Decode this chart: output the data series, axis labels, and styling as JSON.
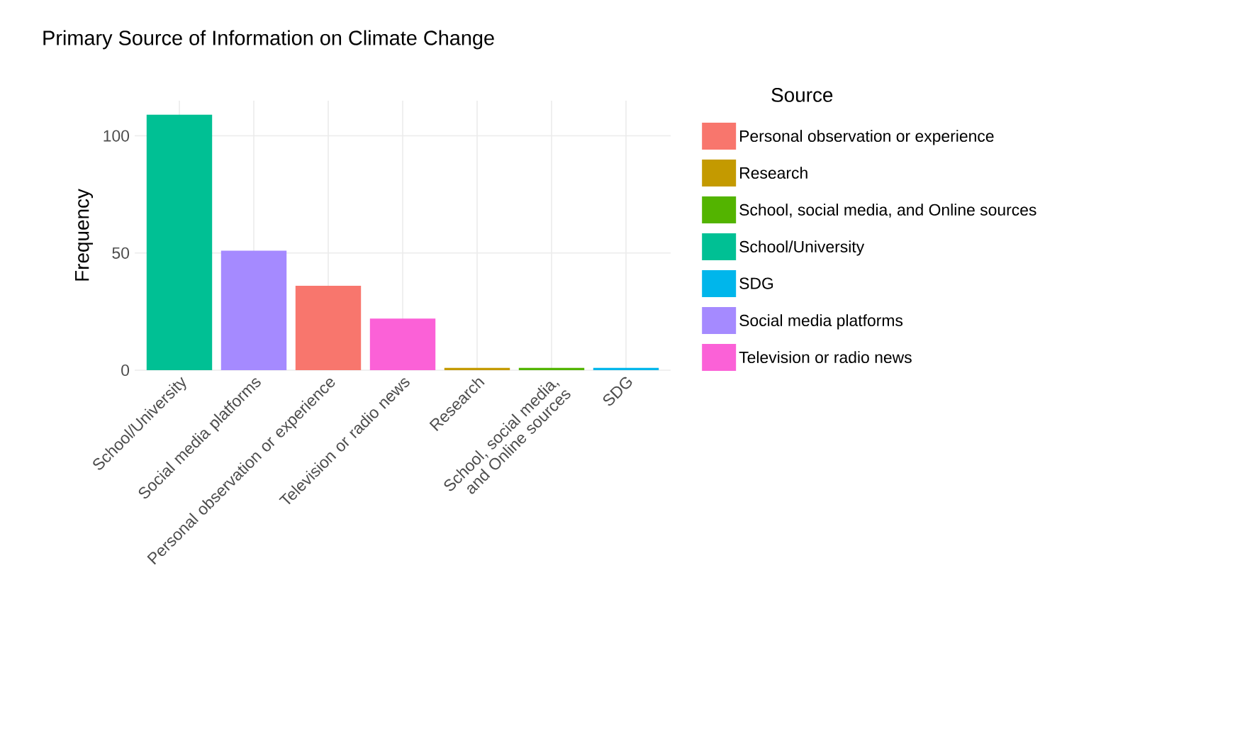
{
  "chart_data": {
    "type": "bar",
    "title": "Primary Source of Information on Climate  Change",
    "ylabel": "Frequency",
    "legend_title": "Source",
    "categories": [
      "School/University",
      "Social media platforms",
      "Personal observation or experience",
      "Television or radio news",
      "Research",
      "School, social media, and Online sources",
      "SDG"
    ],
    "series": [
      {
        "name": "Personal observation or experience",
        "color": "#f8766d",
        "values": [
          null,
          null,
          36,
          null,
          null,
          null,
          null
        ]
      },
      {
        "name": "Research",
        "color": "#c49a00",
        "values": [
          null,
          null,
          null,
          null,
          1,
          null,
          null
        ]
      },
      {
        "name": "School, social media, and Online sources",
        "color": "#53b400",
        "values": [
          null,
          null,
          null,
          null,
          null,
          1,
          null
        ]
      },
      {
        "name": "School/University",
        "color": "#00c094",
        "values": [
          109,
          null,
          null,
          null,
          null,
          null,
          null
        ]
      },
      {
        "name": "SDG",
        "color": "#00b6eb",
        "values": [
          null,
          null,
          null,
          null,
          null,
          null,
          1
        ]
      },
      {
        "name": "Social media platforms",
        "color": "#a58aff",
        "values": [
          null,
          51,
          null,
          null,
          null,
          null,
          null
        ]
      },
      {
        "name": "Television or radio news",
        "color": "#fb61d7",
        "values": [
          null,
          null,
          null,
          22,
          null,
          null,
          null
        ]
      }
    ],
    "ylim": [
      0,
      115
    ],
    "yticks": [
      0,
      50,
      100
    ],
    "grid": true,
    "legend": "right"
  }
}
